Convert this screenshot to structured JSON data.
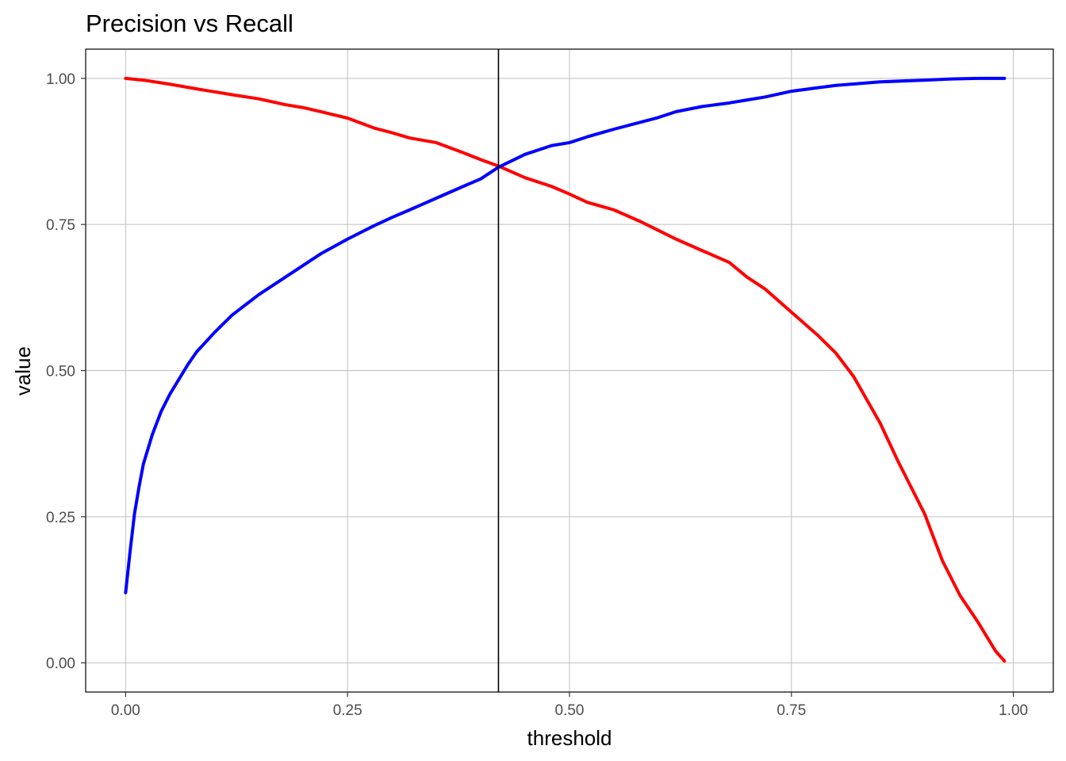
{
  "chart_data": {
    "type": "line",
    "title": "Precision vs Recall",
    "xlabel": "threshold",
    "ylabel": "value",
    "xlim": [
      -0.045,
      1.045
    ],
    "ylim": [
      -0.05,
      1.05
    ],
    "x_ticks": [
      0,
      0.25,
      0.5,
      0.75,
      1
    ],
    "x_tick_labels": [
      "0.00",
      "0.25",
      "0.50",
      "0.75",
      "1.00"
    ],
    "y_ticks": [
      0,
      0.25,
      0.5,
      0.75,
      1
    ],
    "y_tick_labels": [
      "0.00",
      "0.25",
      "0.50",
      "0.75",
      "1.00"
    ],
    "grid": true,
    "legend": "none",
    "vline_x": 0.42,
    "series": [
      {
        "color": "#ff0000",
        "x": [
          0.0,
          0.02,
          0.05,
          0.08,
          0.1,
          0.12,
          0.15,
          0.18,
          0.2,
          0.22,
          0.25,
          0.28,
          0.3,
          0.32,
          0.35,
          0.38,
          0.4,
          0.42,
          0.45,
          0.48,
          0.5,
          0.52,
          0.55,
          0.58,
          0.6,
          0.62,
          0.65,
          0.68,
          0.7,
          0.72,
          0.75,
          0.78,
          0.8,
          0.82,
          0.85,
          0.87,
          0.9,
          0.92,
          0.94,
          0.96,
          0.98,
          0.99
        ],
        "y": [
          1.0,
          0.997,
          0.99,
          0.982,
          0.977,
          0.972,
          0.965,
          0.955,
          0.95,
          0.943,
          0.932,
          0.915,
          0.907,
          0.898,
          0.89,
          0.873,
          0.861,
          0.85,
          0.83,
          0.815,
          0.802,
          0.788,
          0.775,
          0.755,
          0.74,
          0.725,
          0.705,
          0.685,
          0.66,
          0.64,
          0.6,
          0.56,
          0.53,
          0.49,
          0.41,
          0.345,
          0.255,
          0.175,
          0.115,
          0.07,
          0.02,
          0.003
        ]
      },
      {
        "color": "#0000ff",
        "x": [
          0.0,
          0.005,
          0.01,
          0.015,
          0.02,
          0.03,
          0.04,
          0.05,
          0.06,
          0.07,
          0.08,
          0.1,
          0.12,
          0.15,
          0.18,
          0.2,
          0.22,
          0.25,
          0.28,
          0.3,
          0.32,
          0.35,
          0.38,
          0.4,
          0.42,
          0.45,
          0.48,
          0.5,
          0.52,
          0.55,
          0.58,
          0.6,
          0.62,
          0.65,
          0.68,
          0.7,
          0.72,
          0.75,
          0.78,
          0.8,
          0.85,
          0.9,
          0.93,
          0.96,
          0.99
        ],
        "y": [
          0.12,
          0.19,
          0.255,
          0.3,
          0.34,
          0.39,
          0.43,
          0.46,
          0.485,
          0.51,
          0.532,
          0.565,
          0.595,
          0.63,
          0.66,
          0.68,
          0.7,
          0.725,
          0.748,
          0.762,
          0.775,
          0.795,
          0.815,
          0.828,
          0.848,
          0.87,
          0.885,
          0.89,
          0.9,
          0.913,
          0.925,
          0.933,
          0.943,
          0.952,
          0.958,
          0.963,
          0.968,
          0.978,
          0.984,
          0.988,
          0.994,
          0.997,
          0.999,
          1.0,
          1.0
        ]
      }
    ]
  }
}
